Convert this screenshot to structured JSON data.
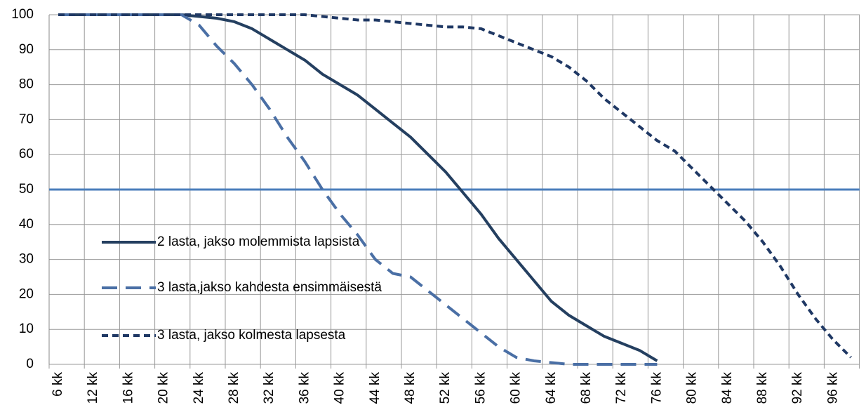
{
  "chart_data": {
    "type": "line",
    "categories": [
      "6 kk",
      null,
      "12 kk",
      null,
      "16 kk",
      null,
      "20 kk",
      null,
      "24 kk",
      null,
      "28 kk",
      null,
      "32 kk",
      null,
      "36 kk",
      null,
      "40 kk",
      null,
      "44 kk",
      null,
      "48 kk",
      null,
      "52 kk",
      null,
      "56 kk",
      null,
      "60 kk",
      null,
      "64 kk",
      null,
      "68 kk",
      null,
      "72 kk",
      null,
      "76 kk",
      null,
      "80 kk",
      null,
      "84 kk",
      null,
      "88 kk",
      null,
      "92 kk",
      null,
      "96 kk",
      null
    ],
    "series": [
      {
        "name": "2 lasta, jakso molemmista lapsista",
        "color": "#243f60",
        "dash": "solid",
        "values": [
          100,
          100,
          100,
          100,
          100,
          100,
          100,
          100,
          99.5,
          99,
          98,
          96,
          93,
          90,
          87,
          83,
          80,
          77,
          73,
          69,
          65,
          60,
          55,
          49,
          43,
          36,
          30,
          24,
          18,
          14,
          11,
          8,
          6,
          4,
          1,
          null,
          null,
          null,
          null,
          null,
          null,
          null,
          null,
          null,
          null,
          null
        ]
      },
      {
        "name": "3 lasta,jakso kahdesta ensimmäisestä",
        "color": "#4a6fa5",
        "dash": "long",
        "values": [
          100,
          100,
          100,
          100,
          100,
          100,
          100,
          100,
          97,
          91,
          86,
          80,
          73,
          65,
          58,
          50,
          43,
          37,
          30,
          26,
          25,
          21,
          17,
          13,
          9,
          5,
          2,
          1,
          0.5,
          0,
          0,
          0,
          0,
          0,
          0,
          null,
          null,
          null,
          null,
          null,
          null,
          null,
          null,
          null,
          null,
          null
        ]
      },
      {
        "name": "3 lasta, jakso kolmesta lapsesta",
        "color": "#1f3864",
        "dash": "short",
        "values": [
          100,
          100,
          100,
          100,
          100,
          100,
          100,
          100,
          100,
          100,
          100,
          100,
          100,
          100,
          100,
          99.5,
          99,
          98.5,
          98.5,
          98,
          97.5,
          97,
          96.5,
          96.5,
          96,
          94,
          92,
          90,
          88,
          85,
          81,
          76,
          72,
          68,
          64,
          61,
          56,
          51,
          46,
          41,
          35,
          28,
          20,
          13,
          7,
          2
        ]
      }
    ],
    "ylim": [
      0,
      100
    ],
    "yticks": [
      0,
      10,
      20,
      30,
      40,
      50,
      60,
      70,
      80,
      90,
      100
    ],
    "grid": true,
    "reference_line": 50,
    "reference_color": "#4a7ebb"
  }
}
